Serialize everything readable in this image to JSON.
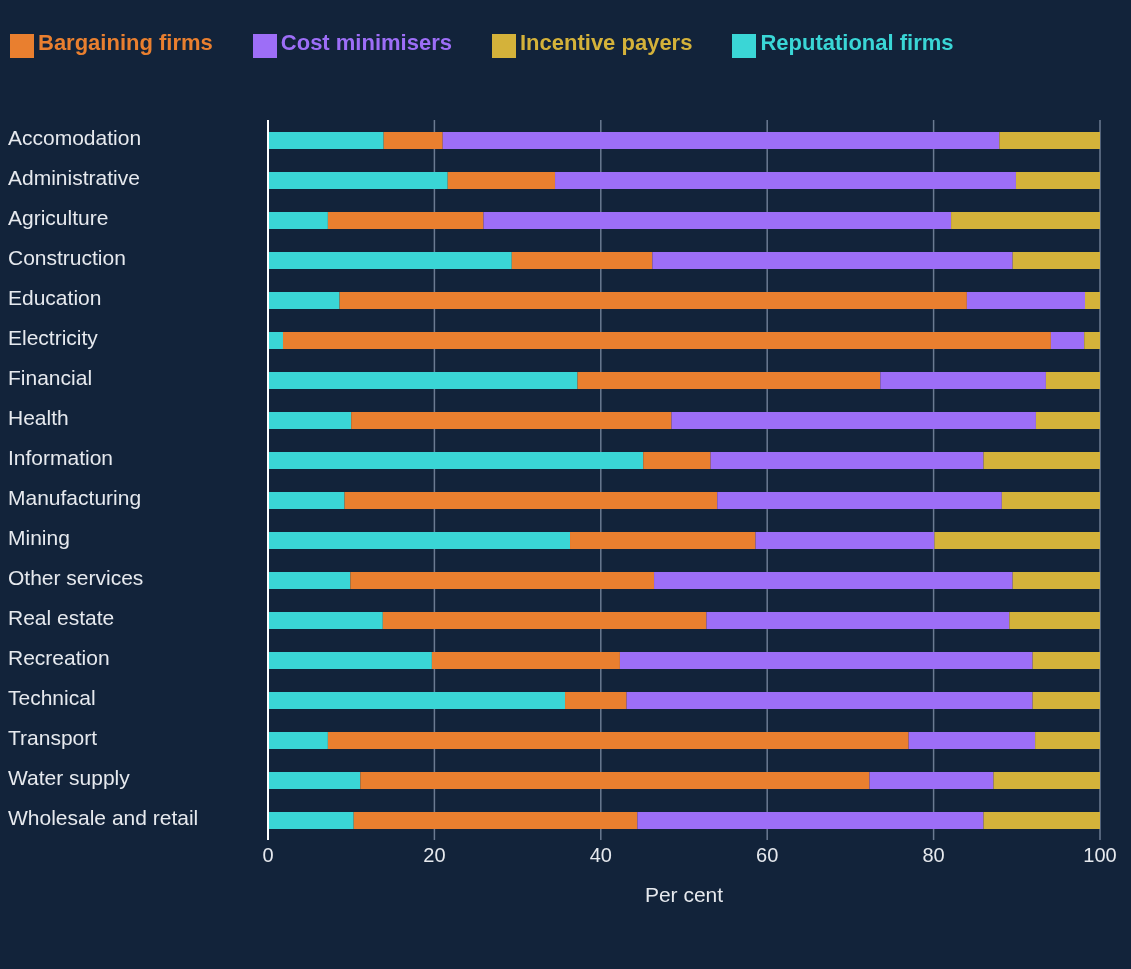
{
  "chart_data": {
    "type": "bar",
    "orientation": "horizontal",
    "stacked": true,
    "xlabel": "Per cent",
    "categories": [
      "Accomodation",
      "Administrative",
      "Agriculture",
      "Construction",
      "Education",
      "Electricity",
      "Financial",
      "Health",
      "Information",
      "Manufacturing",
      "Mining",
      "Other services",
      "Real estate",
      "Recreation",
      "Technical",
      "Transport",
      "Water supply",
      "Wholesale and retail"
    ],
    "series": [
      {
        "name": "Reputational firms",
        "color": "#3ad6d6",
        "values": [
          13.9,
          21.6,
          7.2,
          29.3,
          8.6,
          1.8,
          37.2,
          10.0,
          45.1,
          9.2,
          36.3,
          9.9,
          13.8,
          19.7,
          35.7,
          7.2,
          11.1,
          10.3
        ]
      },
      {
        "name": "Bargaining firms",
        "color": "#e97f2f",
        "values": [
          7.1,
          12.9,
          18.7,
          16.9,
          75.4,
          92.3,
          36.4,
          38.5,
          8.1,
          44.8,
          22.3,
          36.5,
          38.9,
          22.6,
          7.4,
          69.8,
          61.2,
          34.1
        ]
      },
      {
        "name": "Cost minimisers",
        "color": "#9d6ef7",
        "values": [
          66.9,
          55.4,
          56.2,
          43.3,
          14.2,
          4.0,
          19.9,
          43.8,
          32.8,
          34.2,
          21.5,
          43.1,
          36.4,
          49.6,
          48.8,
          15.2,
          14.9,
          41.6
        ]
      },
      {
        "name": "Incentive payers",
        "color": "#d4b23a",
        "values": [
          12.1,
          10.1,
          17.9,
          10.5,
          1.8,
          1.9,
          6.5,
          7.7,
          14.0,
          11.8,
          19.9,
          10.5,
          10.9,
          8.1,
          8.1,
          7.8,
          12.8,
          14.0
        ]
      }
    ],
    "xlim": [
      0,
      100
    ],
    "xticks": [
      0,
      20,
      40,
      60,
      80,
      100
    ],
    "grid": "x",
    "legend": "top"
  }
}
